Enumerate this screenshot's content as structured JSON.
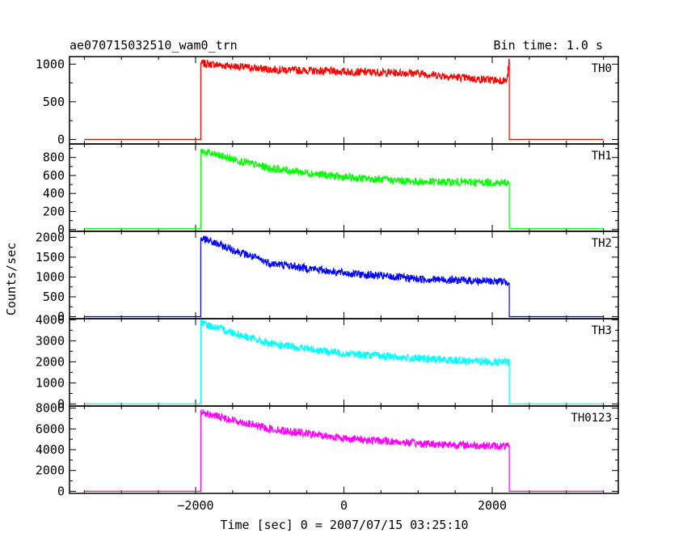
{
  "chart_data": {
    "type": "line",
    "title": "ae070715032510_wam0_trn",
    "subtitle": "Bin time: 1.0 s",
    "xlabel": "Time [sec] 0 = 2007/07/15 03:25:10",
    "ylabel": "Counts/sec",
    "xlim": [
      -3700,
      3700
    ],
    "xticks": [
      -2000,
      0,
      2000
    ],
    "x_start": -3500,
    "x_end": 3500,
    "source_on": -1930,
    "source_off": 2230,
    "panels": [
      {
        "name": "TH0",
        "color": "#ff0000",
        "ylim": [
          -60,
          1100
        ],
        "yticks": [
          0,
          500,
          1000
        ],
        "baseline": 0,
        "points": [
          [
            -1930,
            1010
          ],
          [
            -1000,
            930
          ],
          [
            0,
            900
          ],
          [
            1000,
            880
          ],
          [
            1800,
            800
          ],
          [
            2200,
            780
          ],
          [
            2230,
            1060
          ]
        ]
      },
      {
        "name": "TH1",
        "color": "#00ff00",
        "ylim": [
          -20,
          950
        ],
        "yticks": [
          0,
          200,
          400,
          600,
          800
        ],
        "baseline": 10,
        "points": [
          [
            -1930,
            870
          ],
          [
            -1000,
            680
          ],
          [
            0,
            580
          ],
          [
            1000,
            530
          ],
          [
            2230,
            520
          ]
        ]
      },
      {
        "name": "TH2",
        "color": "#0000ff",
        "ylim": [
          -50,
          2150
        ],
        "yticks": [
          0,
          500,
          1000,
          1500,
          2000
        ],
        "baseline": 0,
        "points": [
          [
            -1930,
            1980
          ],
          [
            -1000,
            1350
          ],
          [
            0,
            1100
          ],
          [
            1000,
            950
          ],
          [
            2230,
            880
          ]
        ]
      },
      {
        "name": "TH3",
        "color": "#00ffff",
        "ylim": [
          -100,
          4050
        ],
        "yticks": [
          0,
          1000,
          2000,
          3000,
          4000
        ],
        "baseline": 0,
        "points": [
          [
            -1930,
            3850
          ],
          [
            -1000,
            2850
          ],
          [
            0,
            2400
          ],
          [
            1000,
            2150
          ],
          [
            2230,
            1970
          ]
        ]
      },
      {
        "name": "TH0123",
        "color": "#ff00ff",
        "ylim": [
          -200,
          8200
        ],
        "yticks": [
          0,
          2000,
          4000,
          6000,
          8000
        ],
        "baseline": 0,
        "points": [
          [
            -1930,
            7600
          ],
          [
            -1000,
            6000
          ],
          [
            0,
            5100
          ],
          [
            1000,
            4600
          ],
          [
            2230,
            4300
          ]
        ]
      }
    ]
  }
}
